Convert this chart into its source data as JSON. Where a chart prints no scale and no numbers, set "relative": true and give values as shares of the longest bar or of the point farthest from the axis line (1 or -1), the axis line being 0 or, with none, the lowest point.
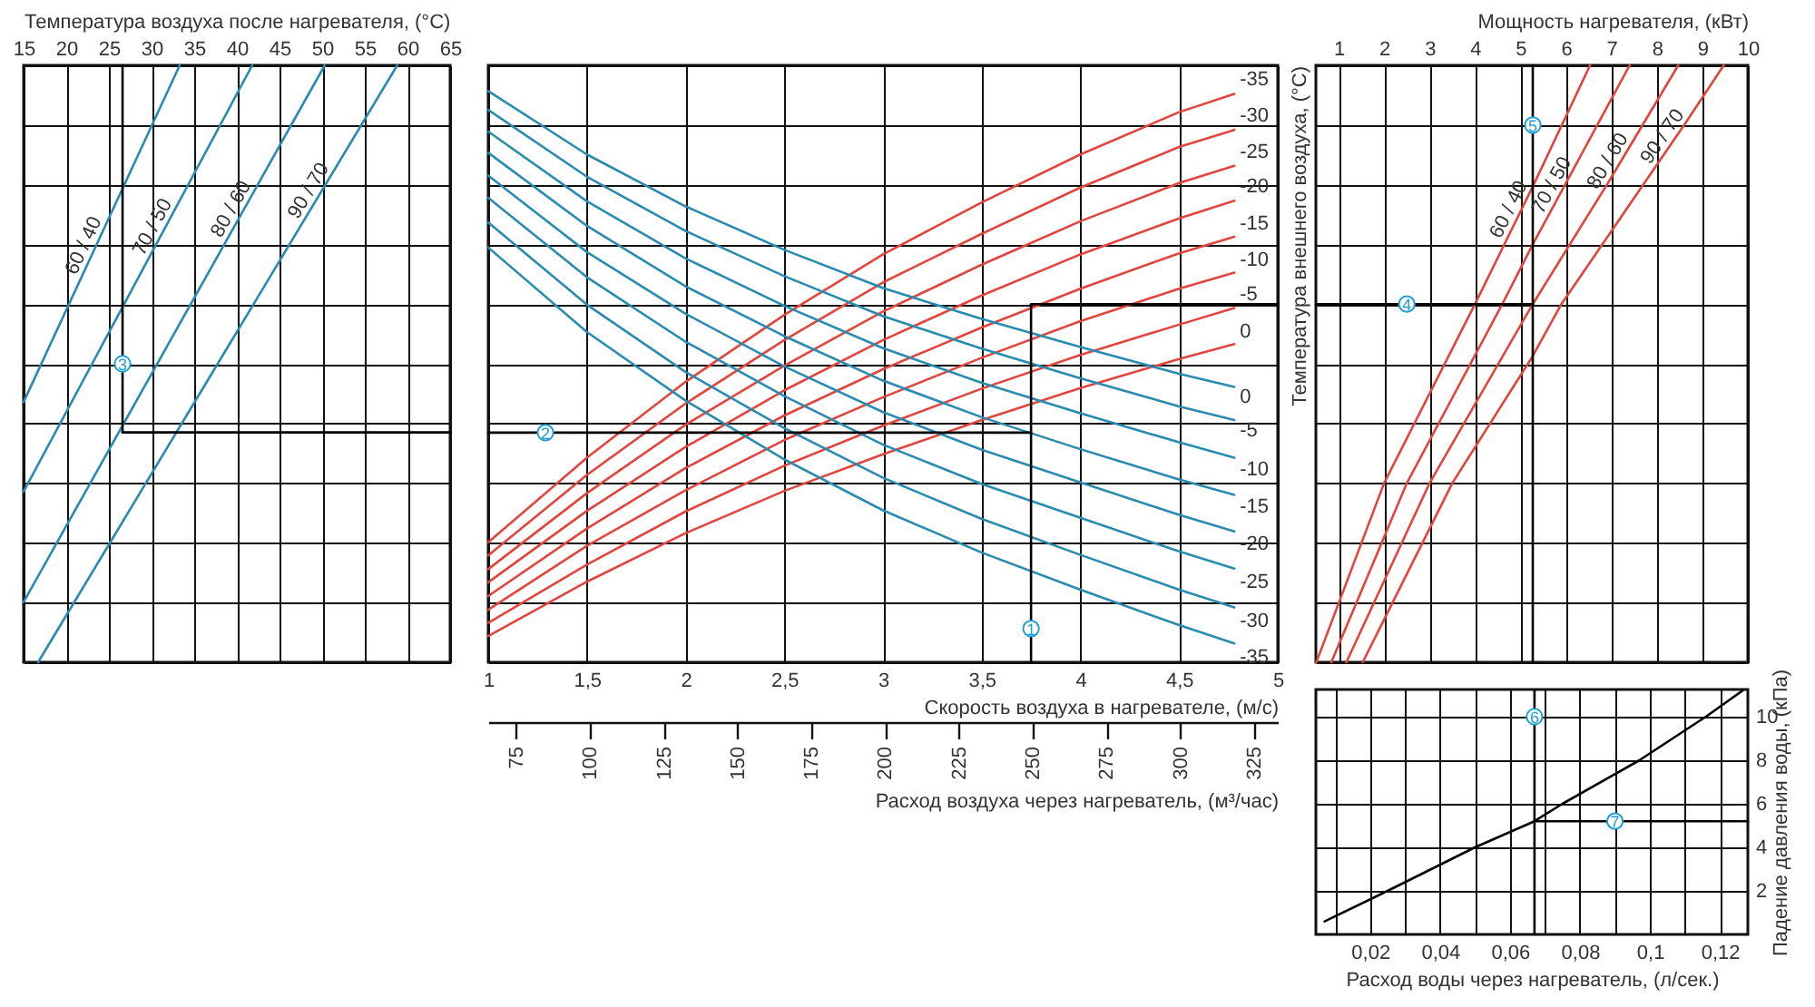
{
  "chart_data": [
    {
      "type": "line",
      "xlabel": "Температура воздуха после нагревателя, (°C)",
      "xlim": [
        15,
        65
      ],
      "xticks": [
        15,
        20,
        25,
        30,
        35,
        40,
        45,
        50,
        55,
        60,
        65
      ],
      "relative": true,
      "grid": true,
      "series": [
        {
          "name": "60 / 40",
          "color": "#2a8bb0",
          "x": [
            15,
            33.3
          ],
          "values": [
            0.436,
            1
          ]
        },
        {
          "name": "70 / 50",
          "color": "#2a8bb0",
          "x": [
            15,
            41.8
          ],
          "values": [
            0.286,
            1
          ]
        },
        {
          "name": "80 / 60",
          "color": "#2a8bb0",
          "x": [
            15,
            50.3
          ],
          "values": [
            0.101,
            1
          ]
        },
        {
          "name": "90 / 70",
          "color": "#2a8bb0",
          "x": [
            16.7,
            58.8
          ],
          "values": [
            0,
            1
          ]
        },
        {
          "color": "#000000",
          "x": [
            26.6,
            26.6
          ],
          "values": [
            0.385,
            1
          ]
        },
        {
          "color": "#000000",
          "x": [
            65,
            26.6
          ],
          "values": [
            0.385,
            0.385
          ]
        }
      ],
      "annotations": [
        {
          "text": "3",
          "x": 26.6,
          "y": 0.5
        }
      ]
    },
    {
      "type": "line",
      "xlabel": "Скорость воздуха в нагревателе, (м/с)",
      "xlim": [
        1,
        5
      ],
      "xticks": [
        1,
        {
          "value": 1.5,
          "label": "1,5"
        },
        2,
        {
          "value": 2.5,
          "label": "2,5"
        },
        3,
        {
          "value": 3.5,
          "label": "3,5"
        },
        4,
        {
          "value": 4.5,
          "label": "4,5"
        },
        5
      ],
      "x2label": "Расход воздуха через нагреватель, (м³/час)",
      "x2lim": [
        65.5,
        333
      ],
      "x2ticks": [
        75,
        100,
        125,
        150,
        175,
        200,
        225,
        250,
        275,
        300,
        325
      ],
      "relative": true,
      "grid": true,
      "x": [
        1,
        1.5,
        2,
        2.5,
        3,
        3.5,
        4,
        4.5,
        4.78
      ],
      "series": [
        {
          "name": "-35",
          "color": "#e2453d",
          "values": [
            0.21,
            0.358,
            0.491,
            0.608,
            0.714,
            0.805,
            0.889,
            0.963,
            0.995
          ]
        },
        {
          "name": "-30",
          "color": "#e2453d",
          "values": [
            0.187,
            0.328,
            0.453,
            0.564,
            0.665,
            0.75,
            0.831,
            0.902,
            0.932
          ]
        },
        {
          "name": "-25",
          "color": "#e2453d",
          "values": [
            0.163,
            0.296,
            0.416,
            0.519,
            0.614,
            0.696,
            0.772,
            0.839,
            0.869
          ]
        },
        {
          "name": "-20",
          "color": "#e2453d",
          "values": [
            0.14,
            0.265,
            0.377,
            0.476,
            0.564,
            0.642,
            0.714,
            0.777,
            0.808
          ]
        },
        {
          "name": "-15",
          "color": "#e2453d",
          "values": [
            0.116,
            0.234,
            0.34,
            0.432,
            0.513,
            0.586,
            0.654,
            0.716,
            0.745
          ]
        },
        {
          "name": "-10",
          "color": "#e2453d",
          "values": [
            0.092,
            0.204,
            0.301,
            0.389,
            0.464,
            0.533,
            0.597,
            0.654,
            0.682
          ]
        },
        {
          "name": "-5",
          "color": "#e2453d",
          "values": [
            0.069,
            0.171,
            0.264,
            0.344,
            0.414,
            0.479,
            0.538,
            0.591,
            0.62
          ]
        },
        {
          "name": "0",
          "color": "#e2453d",
          "values": [
            0.046,
            0.141,
            0.226,
            0.3,
            0.364,
            0.424,
            0.48,
            0.531,
            0.557
          ]
        },
        {
          "name": "0",
          "color": "#2a8bb0",
          "values": [
            1,
            0.889,
            0.798,
            0.722,
            0.655,
            0.601,
            0.552,
            0.505,
            0.482
          ]
        },
        {
          "name": "-5",
          "color": "#2a8bb0",
          "values": [
            0.967,
            0.85,
            0.755,
            0.676,
            0.606,
            0.549,
            0.497,
            0.448,
            0.424
          ]
        },
        {
          "name": "-10",
          "color": "#2a8bb0",
          "values": [
            0.929,
            0.807,
            0.707,
            0.624,
            0.55,
            0.489,
            0.436,
            0.385,
            0.358
          ]
        },
        {
          "name": "-15",
          "color": "#2a8bb0",
          "values": [
            0.892,
            0.764,
            0.658,
            0.571,
            0.493,
            0.429,
            0.373,
            0.32,
            0.293
          ]
        },
        {
          "name": "-20",
          "color": "#2a8bb0",
          "values": [
            0.852,
            0.718,
            0.61,
            0.518,
            0.438,
            0.372,
            0.315,
            0.258,
            0.229
          ]
        },
        {
          "name": "-25",
          "color": "#2a8bb0",
          "values": [
            0.813,
            0.674,
            0.561,
            0.466,
            0.381,
            0.312,
            0.253,
            0.194,
            0.164
          ]
        },
        {
          "name": "-30",
          "color": "#2a8bb0",
          "values": [
            0.77,
            0.626,
            0.508,
            0.41,
            0.323,
            0.251,
            0.188,
            0.127,
            0.096
          ]
        },
        {
          "name": "-35",
          "color": "#2a8bb0",
          "values": [
            0.726,
            0.578,
            0.458,
            0.355,
            0.266,
            0.192,
            0.127,
            0.065,
            0.033
          ]
        },
        {
          "color": "#000000",
          "x": [
            3.75,
            3.75
          ],
          "values": [
            0,
            0.627
          ]
        },
        {
          "color": "#000000",
          "x": [
            3.75,
            5
          ],
          "values": [
            0.627,
            0.627
          ]
        },
        {
          "color": "#000000",
          "x": [
            3.75,
            1
          ],
          "values": [
            0.402,
            0.402
          ]
        }
      ],
      "annotations": [
        {
          "text": "1",
          "x": 3.75,
          "y": 0.059
        },
        {
          "text": "2",
          "x": 1.29,
          "y": 0.402
        }
      ]
    },
    {
      "type": "line",
      "xlabel": "Мощность нагревателя, (кВт)",
      "ylabel": "Температура внешнего воздуха, (°C)",
      "xlim": [
        0.5,
        10
      ],
      "xticks": [
        1,
        2,
        3,
        4,
        5,
        6,
        7,
        8,
        9,
        10
      ],
      "relative": true,
      "grid": true,
      "series": [
        {
          "name": "60 / 40",
          "color": "#e2453d",
          "x": [
            0.51,
            2.0,
            4.0,
            5.27,
            6.53
          ],
          "values": [
            0,
            0.3,
            0.6,
            0.797,
            1
          ]
        },
        {
          "name": "70 / 50",
          "color": "#e2453d",
          "x": [
            0.84,
            2.5,
            4.6,
            5.27,
            7.4
          ],
          "values": [
            0,
            0.3,
            0.6,
            0.7,
            1
          ]
        },
        {
          "name": "80 / 60",
          "color": "#e2453d",
          "x": [
            1.17,
            3.0,
            5.27,
            6.9,
            8.47
          ],
          "values": [
            0,
            0.3,
            0.6,
            0.8,
            1
          ]
        },
        {
          "name": "90 / 70",
          "color": "#e2453d",
          "x": [
            1.53,
            3.5,
            5.27,
            5.9,
            7.7,
            8.6,
            9.47
          ],
          "values": [
            0,
            0.3,
            0.513,
            0.6,
            0.8,
            0.9,
            1
          ]
        },
        {
          "color": "#000000",
          "x": [
            0.5,
            5.27
          ],
          "values": [
            0.6,
            0.6
          ]
        },
        {
          "color": "#000000",
          "x": [
            5.27,
            5.27
          ],
          "values": [
            0,
            1
          ]
        }
      ],
      "annotations": [
        {
          "text": "4",
          "x": 2.5,
          "y": 0.6
        },
        {
          "text": "5",
          "x": 5.27,
          "y": 0.9
        }
      ]
    },
    {
      "type": "line",
      "xlabel": "Расход воды через нагреватель, (л/сек.)",
      "ylabel": "Падение давления воды, (кПа)",
      "xlim": [
        0.0045,
        0.128
      ],
      "xticks": [
        {
          "value": 0.01,
          "label": null
        },
        {
          "value": 0.02,
          "label": "0,02"
        },
        {
          "value": 0.03,
          "label": null
        },
        {
          "value": 0.04,
          "label": "0,04"
        },
        {
          "value": 0.05,
          "label": null
        },
        {
          "value": 0.06,
          "label": "0,06"
        },
        {
          "value": 0.07,
          "label": null
        },
        {
          "value": 0.08,
          "label": "0,08"
        },
        {
          "value": 0.09,
          "label": null
        },
        {
          "value": 0.1,
          "label": "0,1"
        },
        {
          "value": 0.11,
          "label": null
        },
        {
          "value": 0.12,
          "label": "0,12"
        }
      ],
      "ylim": [
        0,
        11.25
      ],
      "yticks": [
        2,
        4,
        6,
        8,
        10
      ],
      "grid": true,
      "series": [
        {
          "color": "#000000",
          "x": [
            0.007,
            0.025,
            0.05,
            0.067,
            0.075,
            0.097,
            0.116,
            0.1265
          ],
          "values": [
            0.6,
            2,
            4,
            5.2,
            6,
            8,
            10,
            11.2
          ]
        },
        {
          "color": "#000000",
          "x": [
            0.067,
            0.067
          ],
          "values": [
            11.2,
            0
          ]
        },
        {
          "color": "#000000",
          "x": [
            0.067,
            0.128
          ],
          "values": [
            5.2,
            5.2
          ]
        }
      ],
      "annotations": [
        {
          "text": "6",
          "x": 0.067,
          "y": 10
        },
        {
          "text": "7",
          "x": 0.09,
          "y": 5.2
        }
      ]
    }
  ]
}
